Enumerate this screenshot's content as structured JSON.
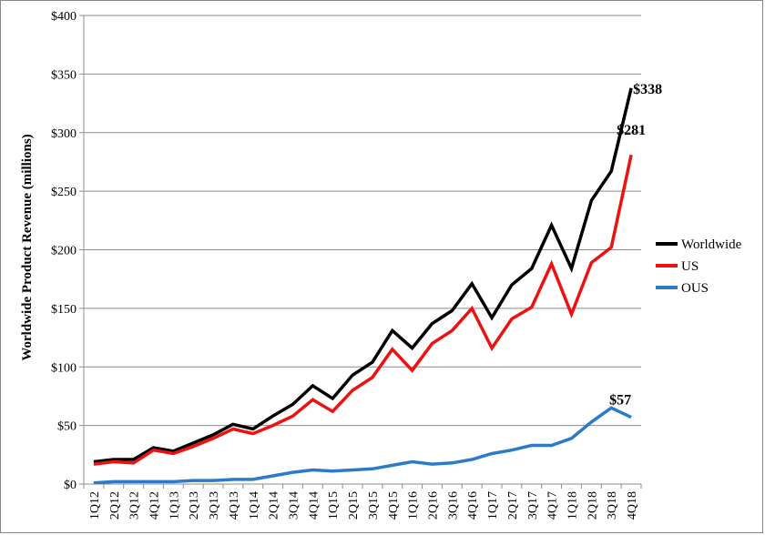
{
  "chart_data": {
    "type": "line",
    "title": "",
    "xlabel": "",
    "ylabel": "Worldwide Product Revenue (millions)",
    "ylim": [
      0,
      400
    ],
    "yticks": [
      "$0",
      "$50",
      "$100",
      "$150",
      "$200",
      "$250",
      "$300",
      "$350",
      "$400"
    ],
    "grid": true,
    "legend_position": "right",
    "categories": [
      "1Q12",
      "2Q12",
      "3Q12",
      "4Q12",
      "1Q13",
      "2Q13",
      "3Q13",
      "4Q13",
      "1Q14",
      "2Q14",
      "3Q14",
      "4Q14",
      "1Q15",
      "2Q15",
      "3Q15",
      "4Q15",
      "1Q16",
      "2Q16",
      "3Q16",
      "4Q16",
      "1Q17",
      "2Q17",
      "3Q17",
      "4Q17",
      "1Q18",
      "2Q18",
      "3Q18",
      "4Q18"
    ],
    "series": [
      {
        "name": "Worldwide",
        "color": "#000000",
        "values": [
          19,
          21,
          21,
          31,
          28,
          35,
          42,
          51,
          47,
          58,
          68,
          84,
          73,
          93,
          104,
          131,
          116,
          137,
          148,
          171,
          142,
          170,
          184,
          221,
          184,
          242,
          267,
          338
        ],
        "end_label": "$338"
      },
      {
        "name": "US",
        "color": "#ee1111",
        "values": [
          17,
          19,
          18,
          29,
          26,
          32,
          39,
          47,
          43,
          50,
          58,
          72,
          62,
          80,
          91,
          115,
          97,
          120,
          131,
          150,
          116,
          141,
          151,
          188,
          145,
          189,
          202,
          281
        ],
        "end_label": "$281"
      },
      {
        "name": "OUS",
        "color": "#2b7bc8",
        "values": [
          1,
          2,
          2,
          2,
          2,
          3,
          3,
          4,
          4,
          7,
          10,
          12,
          11,
          12,
          13,
          16,
          19,
          17,
          18,
          21,
          26,
          29,
          33,
          33,
          39,
          53,
          65,
          57
        ],
        "end_label": "$57"
      }
    ]
  }
}
